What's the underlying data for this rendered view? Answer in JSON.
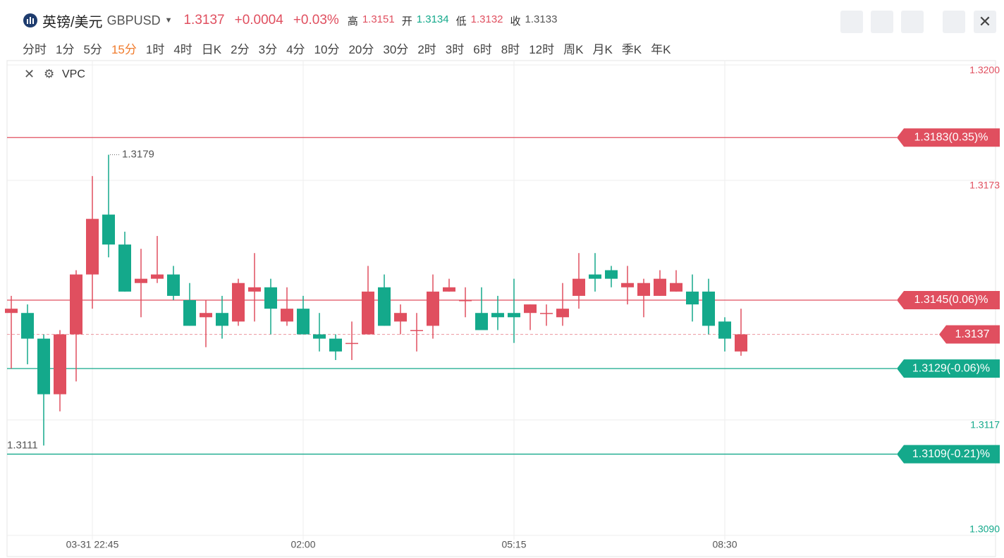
{
  "header": {
    "name": "英镑/美元",
    "code": "GBPUSD",
    "price": "1.3137",
    "change": "+0.0004",
    "change_pct": "+0.03%",
    "stats": [
      {
        "label": "高",
        "value": "1.3151"
      },
      {
        "label": "开",
        "value": "1.3134"
      },
      {
        "label": "低",
        "value": "1.3132"
      },
      {
        "label": "收",
        "value": "1.3133"
      }
    ]
  },
  "intervals": {
    "items": [
      "分时",
      "1分",
      "5分",
      "15分",
      "1时",
      "4时",
      "日K",
      "2分",
      "3分",
      "4分",
      "10分",
      "20分",
      "30分",
      "2时",
      "3时",
      "6时",
      "8时",
      "12时",
      "周K",
      "月K",
      "季K",
      "年K"
    ],
    "active": "15分"
  },
  "indicator": "VPC",
  "chart_data": {
    "type": "candlestick",
    "categories": [
      null,
      null,
      null,
      null,
      null,
      "03-31 22:45",
      null,
      null,
      null,
      null,
      null,
      null,
      null,
      null,
      null,
      null,
      null,
      null,
      "02:00",
      null,
      null,
      null,
      null,
      null,
      null,
      null,
      null,
      null,
      null,
      null,
      null,
      "05:15",
      null,
      null,
      null,
      null,
      null,
      null,
      null,
      null,
      null,
      null,
      null,
      null,
      "08:30",
      null
    ],
    "open": [
      1.3142,
      1.3142,
      1.3136,
      1.3123,
      1.3137,
      1.3151,
      1.3165,
      1.3158,
      1.3149,
      1.315,
      1.3151,
      1.3145,
      1.3141,
      1.3142,
      1.314,
      1.3147,
      1.3148,
      1.314,
      1.3143,
      1.3137,
      1.3136,
      1.3135,
      1.3137,
      1.3148,
      1.314,
      1.3138,
      1.3139,
      1.3147,
      1.3145,
      1.3142,
      1.3142,
      1.3142,
      1.3142,
      1.3142,
      1.3141,
      1.3146,
      1.3151,
      1.3152,
      1.3148,
      1.3146,
      1.3146,
      1.3147,
      1.3147,
      1.3147,
      1.314,
      1.3133
    ],
    "high": [
      1.3146,
      1.3144,
      1.3137,
      1.3138,
      1.3152,
      1.3174,
      1.3179,
      1.3161,
      1.3157,
      1.316,
      1.3153,
      1.3149,
      1.3145,
      1.3146,
      1.315,
      1.3156,
      1.315,
      1.3148,
      1.3146,
      1.3142,
      1.3137,
      1.314,
      1.3153,
      1.3151,
      1.3144,
      1.3142,
      1.3151,
      1.315,
      1.3148,
      1.3148,
      1.3146,
      1.315,
      1.3144,
      1.3144,
      1.3149,
      1.3156,
      1.3156,
      1.3153,
      1.3153,
      1.315,
      1.3152,
      1.3152,
      1.3151,
      1.315,
      1.3141,
      1.3143
    ],
    "low": [
      1.3129,
      1.313,
      1.3111,
      1.3119,
      1.3126,
      1.3143,
      1.3155,
      1.3147,
      1.3141,
      1.3149,
      1.3145,
      1.3139,
      1.3134,
      1.3136,
      1.3139,
      1.314,
      1.3137,
      1.3139,
      1.3137,
      1.3133,
      1.3131,
      1.3131,
      1.3137,
      1.3139,
      1.3137,
      1.3133,
      1.3136,
      1.3147,
      1.3141,
      1.3138,
      1.3138,
      1.3135,
      1.3138,
      1.3139,
      1.3139,
      1.3143,
      1.3147,
      1.3148,
      1.3144,
      1.3141,
      1.3146,
      1.3147,
      1.314,
      1.3137,
      1.3133,
      1.3132
    ],
    "close": [
      1.3143,
      1.3136,
      1.3123,
      1.3137,
      1.3151,
      1.3164,
      1.3158,
      1.3147,
      1.315,
      1.3151,
      1.3146,
      1.3139,
      1.3142,
      1.3139,
      1.3149,
      1.3148,
      1.3143,
      1.3143,
      1.3137,
      1.3136,
      1.3133,
      1.3135,
      1.3147,
      1.3139,
      1.3142,
      1.3138,
      1.3147,
      1.3148,
      1.3145,
      1.3138,
      1.3141,
      1.3141,
      1.3144,
      1.3142,
      1.3143,
      1.315,
      1.315,
      1.315,
      1.3149,
      1.3149,
      1.315,
      1.3149,
      1.3144,
      1.3139,
      1.3136,
      1.3137
    ],
    "up_color": "#e04f5f",
    "down_color": "#14a98b",
    "ylim": [
      1.3089,
      1.3201
    ],
    "yticks": [
      {
        "value": 1.32,
        "label": "1.3200"
      },
      1.3173,
      1.3117,
      {
        "value": 1.309,
        "label": "1.3090"
      }
    ],
    "levels": [
      {
        "value": 1.3183,
        "label": "1.3183(0.35)%",
        "color": "#e04f5f"
      },
      {
        "value": 1.3145,
        "label": "1.3145(0.06)%",
        "color": "#e04f5f"
      },
      {
        "value": 1.3129,
        "label": "1.3129(-0.06)%",
        "color": "#14a98b"
      },
      {
        "value": 1.3109,
        "label": "1.3109(-0.21)%",
        "color": "#14a98b"
      }
    ],
    "current": {
      "value": 1.3137,
      "label": "1.3137",
      "color": "#e04f5f"
    },
    "annotations": [
      {
        "index": 6,
        "value": 1.3179,
        "label": "1.3179"
      },
      {
        "index": 2,
        "value": 1.3111,
        "label": "1.3111"
      }
    ]
  }
}
